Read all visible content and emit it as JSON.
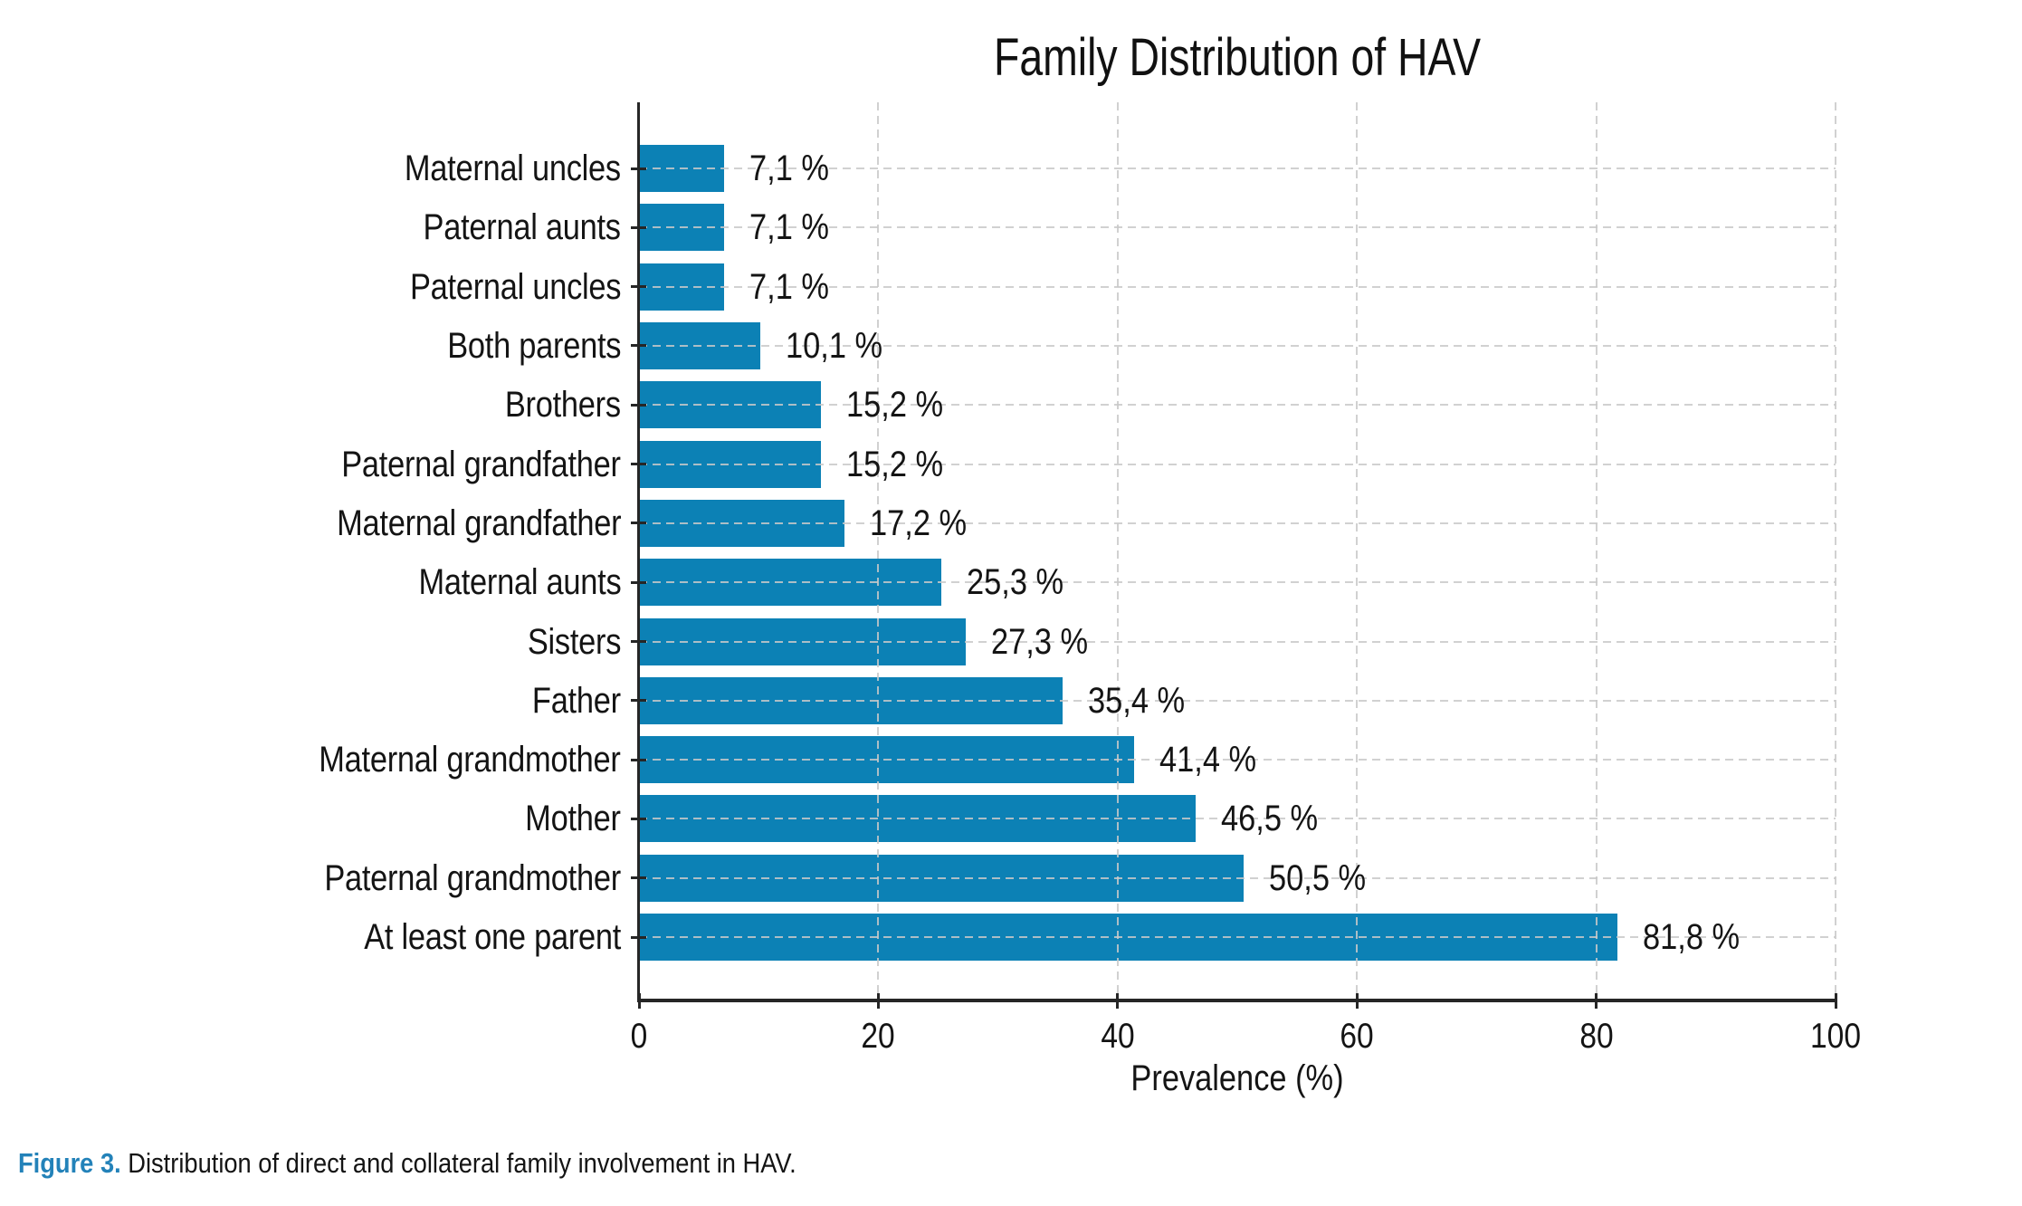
{
  "caption": {
    "label": "Figure 3.",
    "text": " Distribution of direct and collateral family involvement in HAV."
  },
  "colors": {
    "bar": "#0c81b5",
    "spine": "#262626",
    "grid": "#c9c9c9",
    "caption_label": "#2382b9",
    "text": "#141414"
  },
  "chart_data": {
    "type": "bar",
    "orientation": "horizontal",
    "title": "Family Distribution of HAV",
    "xlabel": "Prevalence (%)",
    "ylabel": "",
    "xlim": [
      0,
      100
    ],
    "xticks": [
      0,
      20,
      40,
      60,
      80,
      100
    ],
    "grid": true,
    "legend": false,
    "categories": [
      "Maternal uncles",
      "Paternal aunts",
      "Paternal uncles",
      "Both parents",
      "Brothers",
      "Paternal grandfather",
      "Maternal grandfather",
      "Maternal aunts",
      "Sisters",
      "Father",
      "Maternal grandmother",
      "Mother",
      "Paternal grandmother",
      "At least one parent"
    ],
    "values": [
      7.1,
      7.1,
      7.1,
      10.1,
      15.2,
      15.2,
      17.2,
      25.3,
      27.3,
      35.4,
      41.4,
      46.5,
      50.5,
      81.8
    ],
    "value_labels": [
      "7,1 %",
      "7,1 %",
      "7,1 %",
      "10,1 %",
      "15,2 %",
      "15,2 %",
      "17,2 %",
      "25,3 %",
      "27,3 %",
      "35,4 %",
      "41,4 %",
      "46,5 %",
      "50,5 %",
      "81,8 %"
    ]
  }
}
